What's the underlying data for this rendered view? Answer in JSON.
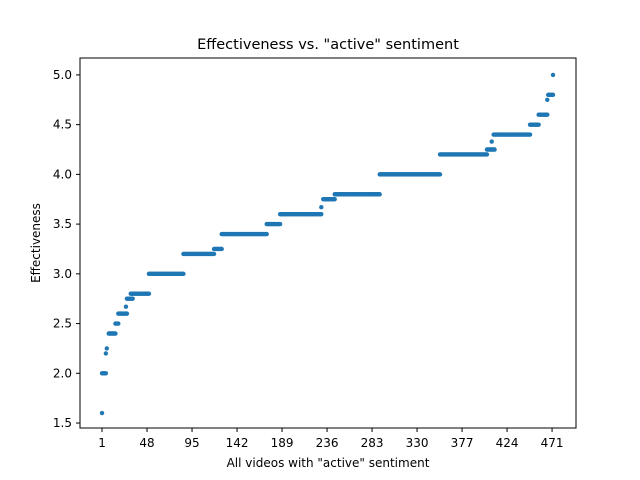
{
  "chart_data": {
    "type": "scatter",
    "title": "Effectiveness vs. \"active\" sentiment",
    "xlabel": "All videos with \"active\" sentiment",
    "ylabel": "Effectiveness",
    "xlim": [
      -22,
      496
    ],
    "ylim": [
      1.45,
      5.17
    ],
    "x_ticks": [
      1,
      48,
      95,
      142,
      189,
      236,
      283,
      330,
      377,
      424,
      471
    ],
    "y_ticks": [
      1.5,
      2.0,
      2.5,
      3.0,
      3.5,
      4.0,
      4.5,
      5.0
    ],
    "y_tick_labels": [
      "1.5",
      "2.0",
      "2.5",
      "3.0",
      "3.5",
      "4.0",
      "4.5",
      "5.0"
    ],
    "grid": false,
    "marker_color": "#1f77b4",
    "segments": [
      {
        "x_start": 1,
        "x_end": 1,
        "y": 1.6
      },
      {
        "x_start": 1,
        "x_end": 5,
        "y": 2.0
      },
      {
        "x_start": 5,
        "x_end": 5,
        "y": 2.2
      },
      {
        "x_start": 6,
        "x_end": 6,
        "y": 2.25
      },
      {
        "x_start": 8,
        "x_end": 15,
        "y": 2.4
      },
      {
        "x_start": 15,
        "x_end": 18,
        "y": 2.5
      },
      {
        "x_start": 18,
        "x_end": 27,
        "y": 2.6
      },
      {
        "x_start": 26,
        "x_end": 26,
        "y": 2.67
      },
      {
        "x_start": 27,
        "x_end": 33,
        "y": 2.75
      },
      {
        "x_start": 31,
        "x_end": 50,
        "y": 2.8
      },
      {
        "x_start": 50,
        "x_end": 86,
        "y": 3.0
      },
      {
        "x_start": 86,
        "x_end": 118,
        "y": 3.2
      },
      {
        "x_start": 118,
        "x_end": 126,
        "y": 3.25
      },
      {
        "x_start": 126,
        "x_end": 173,
        "y": 3.4
      },
      {
        "x_start": 173,
        "x_end": 187,
        "y": 3.5
      },
      {
        "x_start": 187,
        "x_end": 230,
        "y": 3.6
      },
      {
        "x_start": 230,
        "x_end": 230,
        "y": 3.67
      },
      {
        "x_start": 232,
        "x_end": 244,
        "y": 3.75
      },
      {
        "x_start": 244,
        "x_end": 291,
        "y": 3.8
      },
      {
        "x_start": 291,
        "x_end": 354,
        "y": 4.0
      },
      {
        "x_start": 354,
        "x_end": 403,
        "y": 4.2
      },
      {
        "x_start": 403,
        "x_end": 411,
        "y": 4.25
      },
      {
        "x_start": 408,
        "x_end": 408,
        "y": 4.33
      },
      {
        "x_start": 410,
        "x_end": 448,
        "y": 4.4
      },
      {
        "x_start": 448,
        "x_end": 457,
        "y": 4.5
      },
      {
        "x_start": 457,
        "x_end": 466,
        "y": 4.6
      },
      {
        "x_start": 466,
        "x_end": 466,
        "y": 4.75
      },
      {
        "x_start": 467,
        "x_end": 472,
        "y": 4.8
      },
      {
        "x_start": 472,
        "x_end": 472,
        "y": 5.0
      }
    ]
  }
}
